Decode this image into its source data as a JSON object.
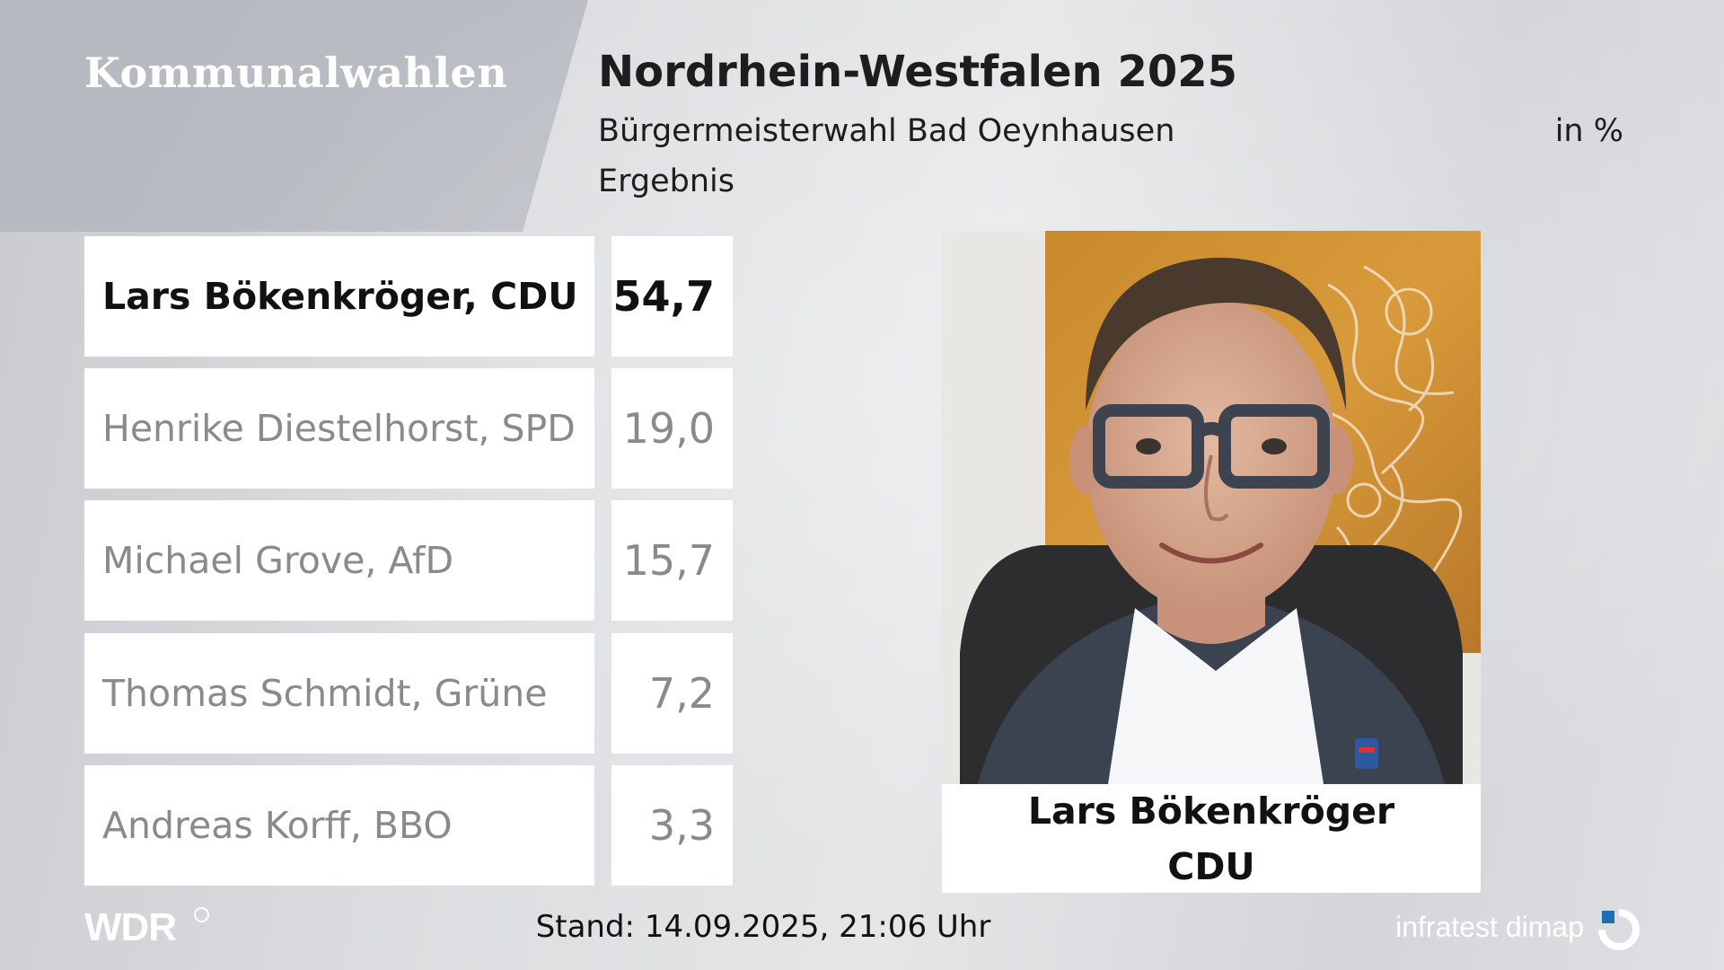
{
  "brand": "Kommunalwahlen",
  "header": {
    "title": "Nordrhein-Westfalen 2025",
    "subtitle": "Bürgermeisterwahl Bad Oeynhausen",
    "unit": "in %",
    "label": "Ergebnis"
  },
  "results": [
    {
      "name": "Lars Bökenkröger, CDU",
      "value": "54,7",
      "winner": true
    },
    {
      "name": "Henrike Diestelhorst, SPD",
      "value": "19,0",
      "winner": false
    },
    {
      "name": "Michael Grove, AfD",
      "value": "15,7",
      "winner": false
    },
    {
      "name": "Thomas Schmidt, Grüne",
      "value": "7,2",
      "winner": false
    },
    {
      "name": "Andreas Korff, BBO",
      "value": "3,3",
      "winner": false
    }
  ],
  "winner_card": {
    "name": "Lars Bökenkröger",
    "party": "CDU"
  },
  "footer": {
    "broadcaster": "WDR",
    "stand": "Stand: 14.09.2025, 21:06 Uhr",
    "source": "infratest dimap"
  },
  "colors": {
    "text_dark": "#111111",
    "text_muted": "#8a8a8a",
    "cell_bg": "#ffffff",
    "infratest_blue": "#1a6fb3"
  }
}
